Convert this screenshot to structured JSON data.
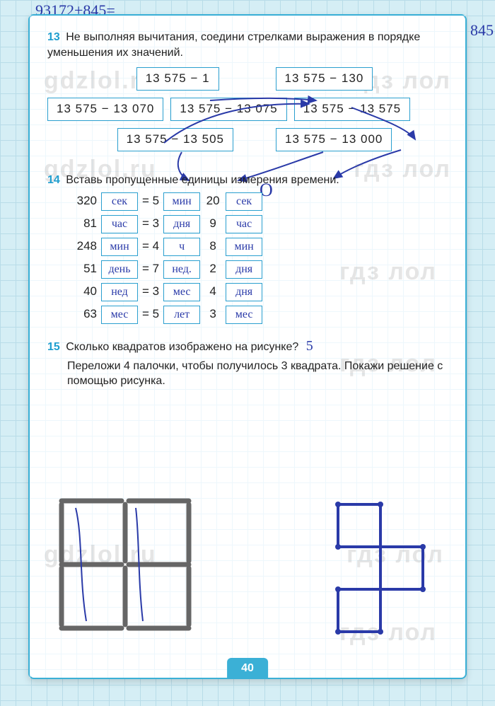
{
  "page_number": "40",
  "watermarks": [
    "gdzlol.ru",
    "гдз лол",
    "gdzlol.ru",
    "гдз лол",
    "гдз лол",
    "гдз лол",
    "gdzlol.ru",
    "гдз лол",
    "гдз лол"
  ],
  "margin_scribbles": {
    "top": "93172+845=",
    "right_top": "845",
    "right_mid": "+ 845"
  },
  "task13": {
    "num": "13",
    "text": "Не выполняя вычитания, соедини стрелками выражения в порядке уменьшения их значений.",
    "row1": [
      "13 575 − 1",
      "13 575 − 130"
    ],
    "row2": [
      "13 575 − 13 070",
      "13 575 − 13 075",
      "13 575 − 13 575"
    ],
    "row3": [
      "13 575 − 13 505",
      "13 575 − 13 000"
    ],
    "hand_circle": "О",
    "arrow_color": "#2a3aa8"
  },
  "task14": {
    "num": "14",
    "text": "Вставь пропущенные единицы измерения времени.",
    "rows": [
      {
        "n": "320",
        "u1": "сек",
        "eq": "= 5",
        "u2": "мин",
        "n2": "20",
        "u3": "сек"
      },
      {
        "n": "81",
        "u1": "час",
        "eq": "= 3",
        "u2": "дня",
        "n2": "9",
        "u3": "час"
      },
      {
        "n": "248",
        "u1": "мин",
        "eq": "= 4",
        "u2": "ч",
        "n2": "8",
        "u3": "мин"
      },
      {
        "n": "51",
        "u1": "день",
        "eq": "= 7",
        "u2": "нед.",
        "n2": "2",
        "u3": "дня"
      },
      {
        "n": "40",
        "u1": "нед",
        "eq": "= 3",
        "u2": "мес",
        "n2": "4",
        "u3": "дня"
      },
      {
        "n": "63",
        "u1": "мес",
        "eq": "= 5",
        "u2": "лет",
        "n2": "3",
        "u3": "мес"
      }
    ]
  },
  "task15": {
    "num": "15",
    "text_line1": "Сколько квадратов изображено на рисунке?",
    "answer": "5",
    "text_line2": "Переложи 4 палочки, чтобы получилось 3 квадрата. Покажи решение с помощью рисунка."
  },
  "colors": {
    "border": "#2a9fcf",
    "accent": "#3bb0d6",
    "ink": "#2a3aa8",
    "grid": "#b8dce8",
    "paper": "#ffffff",
    "bg": "#d5eef5"
  },
  "stick": {
    "color": "#666",
    "width": 6,
    "cap": "round"
  }
}
